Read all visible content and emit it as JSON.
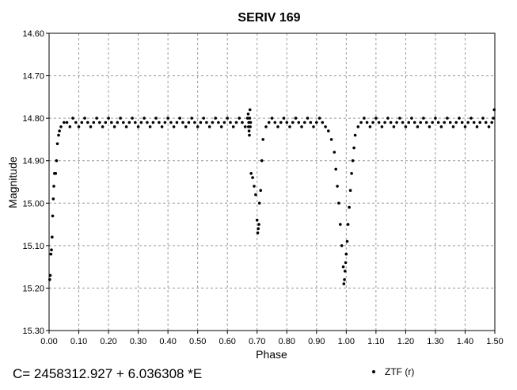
{
  "chart_data": {
    "type": "scatter",
    "title": "SERIV 169",
    "xlabel": "Phase",
    "ylabel": "Magnitude",
    "xlim": [
      0.0,
      1.5
    ],
    "ylim": [
      15.3,
      14.6
    ],
    "y_inverted": true,
    "grid": true,
    "legend_placement": "bottom-right",
    "x_ticks": [
      "0.00",
      "0.10",
      "0.20",
      "0.30",
      "0.40",
      "0.50",
      "0.60",
      "0.70",
      "0.80",
      "0.90",
      "1.00",
      "1.10",
      "1.20",
      "1.30",
      "1.40",
      "1.50"
    ],
    "y_ticks": [
      "14.60",
      "14.70",
      "14.80",
      "14.90",
      "15.00",
      "15.10",
      "15.20",
      "15.30"
    ],
    "ephemeris": "C= 2458312.927 + 6.036308 *E",
    "marker_color": "#000000",
    "series": [
      {
        "name": "ZTF (r)",
        "points": [
          [
            0.002,
            15.18
          ],
          [
            0.004,
            15.17
          ],
          [
            0.006,
            15.12
          ],
          [
            0.008,
            15.11
          ],
          [
            0.01,
            15.08
          ],
          [
            0.012,
            15.03
          ],
          [
            0.014,
            14.99
          ],
          [
            0.016,
            14.96
          ],
          [
            0.018,
            14.93
          ],
          [
            0.022,
            14.93
          ],
          [
            0.025,
            14.9
          ],
          [
            0.028,
            14.86
          ],
          [
            0.032,
            14.84
          ],
          [
            0.035,
            14.83
          ],
          [
            0.04,
            14.82
          ],
          [
            0.05,
            14.81
          ],
          [
            0.06,
            14.81
          ],
          [
            0.07,
            14.82
          ],
          [
            0.08,
            14.8
          ],
          [
            0.09,
            14.81
          ],
          [
            0.1,
            14.82
          ],
          [
            0.11,
            14.81
          ],
          [
            0.12,
            14.8
          ],
          [
            0.13,
            14.81
          ],
          [
            0.14,
            14.82
          ],
          [
            0.15,
            14.81
          ],
          [
            0.16,
            14.8
          ],
          [
            0.17,
            14.81
          ],
          [
            0.18,
            14.82
          ],
          [
            0.19,
            14.81
          ],
          [
            0.2,
            14.8
          ],
          [
            0.21,
            14.81
          ],
          [
            0.22,
            14.82
          ],
          [
            0.23,
            14.81
          ],
          [
            0.24,
            14.8
          ],
          [
            0.25,
            14.81
          ],
          [
            0.26,
            14.82
          ],
          [
            0.27,
            14.81
          ],
          [
            0.28,
            14.8
          ],
          [
            0.29,
            14.81
          ],
          [
            0.3,
            14.82
          ],
          [
            0.31,
            14.81
          ],
          [
            0.32,
            14.8
          ],
          [
            0.33,
            14.81
          ],
          [
            0.34,
            14.82
          ],
          [
            0.35,
            14.81
          ],
          [
            0.36,
            14.8
          ],
          [
            0.37,
            14.81
          ],
          [
            0.38,
            14.82
          ],
          [
            0.39,
            14.81
          ],
          [
            0.4,
            14.8
          ],
          [
            0.41,
            14.81
          ],
          [
            0.42,
            14.82
          ],
          [
            0.43,
            14.81
          ],
          [
            0.44,
            14.8
          ],
          [
            0.45,
            14.81
          ],
          [
            0.46,
            14.82
          ],
          [
            0.47,
            14.81
          ],
          [
            0.48,
            14.8
          ],
          [
            0.49,
            14.81
          ],
          [
            0.5,
            14.82
          ],
          [
            0.51,
            14.81
          ],
          [
            0.52,
            14.8
          ],
          [
            0.53,
            14.81
          ],
          [
            0.54,
            14.82
          ],
          [
            0.55,
            14.81
          ],
          [
            0.56,
            14.8
          ],
          [
            0.57,
            14.81
          ],
          [
            0.58,
            14.82
          ],
          [
            0.59,
            14.81
          ],
          [
            0.6,
            14.8
          ],
          [
            0.61,
            14.81
          ],
          [
            0.62,
            14.82
          ],
          [
            0.63,
            14.81
          ],
          [
            0.64,
            14.8
          ],
          [
            0.65,
            14.81
          ],
          [
            0.66,
            14.82
          ],
          [
            0.668,
            14.8
          ],
          [
            0.67,
            14.79
          ],
          [
            0.671,
            14.82
          ],
          [
            0.672,
            14.81
          ],
          [
            0.673,
            14.83
          ],
          [
            0.674,
            14.84
          ],
          [
            0.675,
            14.8
          ],
          [
            0.676,
            14.78
          ],
          [
            0.677,
            14.82
          ],
          [
            0.678,
            14.81
          ],
          [
            0.68,
            14.93
          ],
          [
            0.685,
            14.94
          ],
          [
            0.69,
            14.96
          ],
          [
            0.695,
            14.98
          ],
          [
            0.7,
            15.04
          ],
          [
            0.702,
            15.07
          ],
          [
            0.704,
            15.06
          ],
          [
            0.706,
            15.05
          ],
          [
            0.708,
            15.0
          ],
          [
            0.712,
            14.97
          ],
          [
            0.716,
            14.9
          ],
          [
            0.72,
            14.85
          ],
          [
            0.73,
            14.82
          ],
          [
            0.74,
            14.81
          ],
          [
            0.75,
            14.8
          ],
          [
            0.76,
            14.81
          ],
          [
            0.77,
            14.82
          ],
          [
            0.78,
            14.81
          ],
          [
            0.79,
            14.8
          ],
          [
            0.8,
            14.81
          ],
          [
            0.81,
            14.82
          ],
          [
            0.82,
            14.81
          ],
          [
            0.83,
            14.8
          ],
          [
            0.84,
            14.81
          ],
          [
            0.85,
            14.82
          ],
          [
            0.86,
            14.81
          ],
          [
            0.87,
            14.8
          ],
          [
            0.88,
            14.81
          ],
          [
            0.89,
            14.82
          ],
          [
            0.9,
            14.81
          ],
          [
            0.91,
            14.8
          ],
          [
            0.92,
            14.81
          ],
          [
            0.93,
            14.82
          ],
          [
            0.94,
            14.83
          ],
          [
            0.95,
            14.85
          ],
          [
            0.96,
            14.88
          ],
          [
            0.965,
            14.92
          ],
          [
            0.97,
            14.96
          ],
          [
            0.975,
            15.0
          ],
          [
            0.98,
            15.05
          ],
          [
            0.985,
            15.1
          ],
          [
            0.99,
            15.15
          ],
          [
            0.992,
            15.19
          ],
          [
            0.994,
            15.18
          ],
          [
            0.996,
            15.16
          ],
          [
            0.998,
            15.14
          ],
          [
            1.0,
            15.12
          ],
          [
            1.003,
            15.09
          ],
          [
            1.006,
            15.05
          ],
          [
            1.01,
            15.01
          ],
          [
            1.014,
            14.97
          ],
          [
            1.018,
            14.93
          ],
          [
            1.022,
            14.9
          ],
          [
            1.026,
            14.87
          ],
          [
            1.03,
            14.84
          ],
          [
            1.04,
            14.82
          ],
          [
            1.05,
            14.81
          ],
          [
            1.06,
            14.8
          ],
          [
            1.07,
            14.81
          ],
          [
            1.08,
            14.82
          ],
          [
            1.09,
            14.81
          ],
          [
            1.1,
            14.8
          ],
          [
            1.11,
            14.81
          ],
          [
            1.12,
            14.82
          ],
          [
            1.13,
            14.81
          ],
          [
            1.14,
            14.8
          ],
          [
            1.15,
            14.81
          ],
          [
            1.16,
            14.82
          ],
          [
            1.17,
            14.81
          ],
          [
            1.18,
            14.8
          ],
          [
            1.19,
            14.81
          ],
          [
            1.2,
            14.82
          ],
          [
            1.21,
            14.81
          ],
          [
            1.22,
            14.8
          ],
          [
            1.23,
            14.81
          ],
          [
            1.24,
            14.82
          ],
          [
            1.25,
            14.81
          ],
          [
            1.26,
            14.8
          ],
          [
            1.27,
            14.81
          ],
          [
            1.28,
            14.82
          ],
          [
            1.29,
            14.81
          ],
          [
            1.3,
            14.8
          ],
          [
            1.31,
            14.81
          ],
          [
            1.32,
            14.82
          ],
          [
            1.33,
            14.81
          ],
          [
            1.34,
            14.8
          ],
          [
            1.35,
            14.81
          ],
          [
            1.36,
            14.82
          ],
          [
            1.37,
            14.81
          ],
          [
            1.38,
            14.8
          ],
          [
            1.39,
            14.81
          ],
          [
            1.4,
            14.82
          ],
          [
            1.41,
            14.81
          ],
          [
            1.42,
            14.8
          ],
          [
            1.43,
            14.81
          ],
          [
            1.44,
            14.82
          ],
          [
            1.45,
            14.81
          ],
          [
            1.46,
            14.8
          ],
          [
            1.47,
            14.81
          ],
          [
            1.48,
            14.82
          ],
          [
            1.49,
            14.81
          ],
          [
            1.495,
            14.8
          ],
          [
            1.498,
            14.78
          ]
        ]
      }
    ]
  }
}
